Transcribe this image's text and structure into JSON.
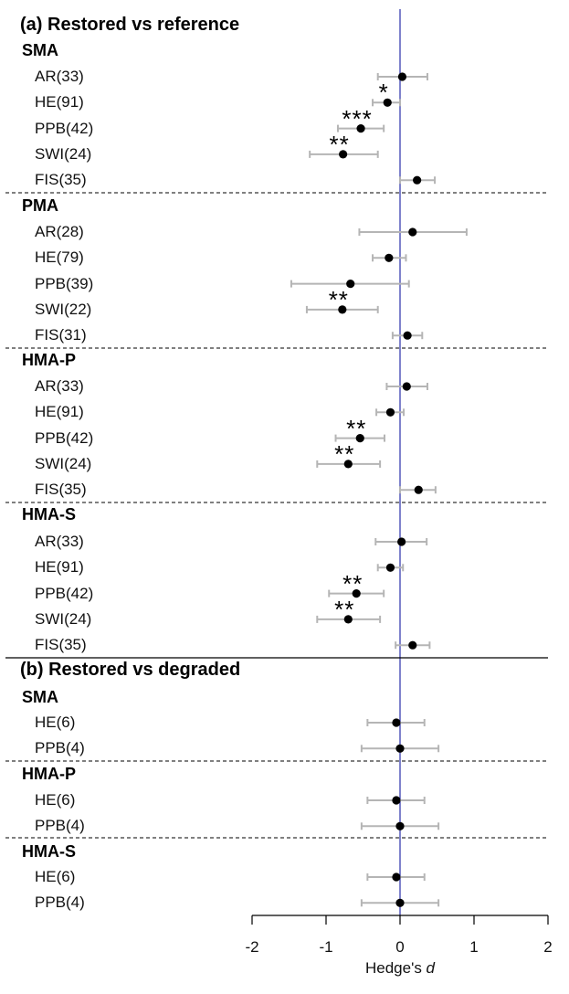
{
  "chart_data": {
    "type": "forest",
    "x_axis": {
      "label_main": "Hedge's",
      "label_var": "d",
      "range": [
        -2,
        2
      ],
      "ticks": [
        -2,
        -1,
        0,
        1,
        2
      ],
      "tick_labels": [
        "-2",
        "-1",
        "0",
        "1",
        "2"
      ],
      "reference_line": 0,
      "reference_color": "#3a3fb0"
    },
    "colors": {
      "point": "#000000",
      "ci": "#b5b5b5",
      "divider": "#000000"
    },
    "parts": [
      {
        "title": "(a) Restored vs reference",
        "groups": [
          {
            "title": "SMA",
            "rows": [
              {
                "label": "AR(33)",
                "est": 0.03,
                "low": -0.3,
                "high": 0.37,
                "sig": ""
              },
              {
                "label": "HE(91)",
                "est": -0.17,
                "low": -0.37,
                "high": 0.0,
                "sig": "*"
              },
              {
                "label": "PPB(42)",
                "est": -0.53,
                "low": -0.84,
                "high": -0.22,
                "sig": "***"
              },
              {
                "label": "SWI(24)",
                "est": -0.77,
                "low": -1.22,
                "high": -0.3,
                "sig": "**"
              },
              {
                "label": "FIS(35)",
                "est": 0.23,
                "low": 0.0,
                "high": 0.47,
                "sig": ""
              }
            ]
          },
          {
            "title": "PMA",
            "rows": [
              {
                "label": "AR(28)",
                "est": 0.17,
                "low": -0.55,
                "high": 0.9,
                "sig": ""
              },
              {
                "label": "HE(79)",
                "est": -0.15,
                "low": -0.37,
                "high": 0.08,
                "sig": ""
              },
              {
                "label": "PPB(39)",
                "est": -0.67,
                "low": -1.47,
                "high": 0.12,
                "sig": ""
              },
              {
                "label": "SWI(22)",
                "est": -0.78,
                "low": -1.26,
                "high": -0.3,
                "sig": "**"
              },
              {
                "label": "FIS(31)",
                "est": 0.1,
                "low": -0.1,
                "high": 0.3,
                "sig": ""
              }
            ]
          },
          {
            "title": "HMA-P",
            "rows": [
              {
                "label": "AR(33)",
                "est": 0.09,
                "low": -0.18,
                "high": 0.37,
                "sig": ""
              },
              {
                "label": "HE(91)",
                "est": -0.13,
                "low": -0.32,
                "high": 0.05,
                "sig": ""
              },
              {
                "label": "PPB(42)",
                "est": -0.54,
                "low": -0.87,
                "high": -0.21,
                "sig": "**"
              },
              {
                "label": "SWI(24)",
                "est": -0.7,
                "low": -1.12,
                "high": -0.27,
                "sig": "**"
              },
              {
                "label": "FIS(35)",
                "est": 0.25,
                "low": 0.0,
                "high": 0.48,
                "sig": ""
              }
            ]
          },
          {
            "title": "HMA-S",
            "rows": [
              {
                "label": "AR(33)",
                "est": 0.02,
                "low": -0.33,
                "high": 0.36,
                "sig": ""
              },
              {
                "label": "HE(91)",
                "est": -0.13,
                "low": -0.3,
                "high": 0.04,
                "sig": ""
              },
              {
                "label": "PPB(42)",
                "est": -0.59,
                "low": -0.96,
                "high": -0.22,
                "sig": "**"
              },
              {
                "label": "SWI(24)",
                "est": -0.7,
                "low": -1.12,
                "high": -0.27,
                "sig": "**"
              },
              {
                "label": "FIS(35)",
                "est": 0.17,
                "low": -0.06,
                "high": 0.4,
                "sig": ""
              }
            ]
          }
        ]
      },
      {
        "title": "(b) Restored vs degraded",
        "groups": [
          {
            "title": "SMA",
            "rows": [
              {
                "label": "HE(6)",
                "est": -0.05,
                "low": -0.44,
                "high": 0.33,
                "sig": ""
              },
              {
                "label": "PPB(4)",
                "est": 0.0,
                "low": -0.52,
                "high": 0.52,
                "sig": ""
              }
            ]
          },
          {
            "title": "HMA-P",
            "rows": [
              {
                "label": "HE(6)",
                "est": -0.05,
                "low": -0.44,
                "high": 0.33,
                "sig": ""
              },
              {
                "label": "PPB(4)",
                "est": 0.0,
                "low": -0.52,
                "high": 0.52,
                "sig": ""
              }
            ]
          },
          {
            "title": "HMA-S",
            "rows": [
              {
                "label": "HE(6)",
                "est": -0.05,
                "low": -0.44,
                "high": 0.33,
                "sig": ""
              },
              {
                "label": "PPB(4)",
                "est": 0.0,
                "low": -0.52,
                "high": 0.52,
                "sig": ""
              }
            ]
          }
        ]
      }
    ]
  }
}
